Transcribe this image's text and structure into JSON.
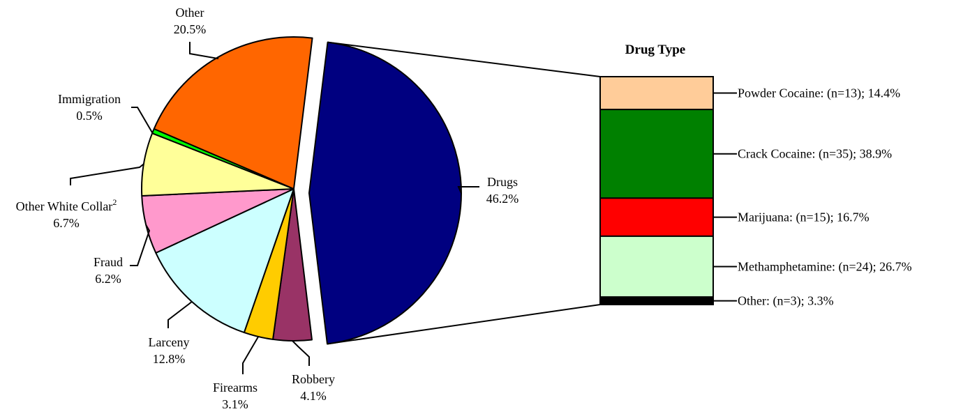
{
  "chart_data": [
    {
      "type": "pie",
      "slices": [
        {
          "label": "Drugs",
          "pct_label": "46.2%",
          "value": 46.2,
          "color": "#000080",
          "exploded": true
        },
        {
          "label": "Robbery",
          "pct_label": "4.1%",
          "value": 4.1,
          "color": "#993366"
        },
        {
          "label": "Firearms",
          "pct_label": "3.1%",
          "value": 3.1,
          "color": "#FFCC00"
        },
        {
          "label": "Larceny",
          "pct_label": "12.8%",
          "value": 12.8,
          "color": "#CCFFFF"
        },
        {
          "label": "Fraud",
          "pct_label": "6.2%",
          "value": 6.2,
          "color": "#FF99CC"
        },
        {
          "label": "Other White Collar",
          "superscript": "2",
          "pct_label": "6.7%",
          "value": 6.7,
          "color": "#FFFF99"
        },
        {
          "label": "Immigration",
          "pct_label": "0.5%",
          "value": 0.5,
          "color": "#00FF00"
        },
        {
          "label": "Other",
          "pct_label": "20.5%",
          "value": 20.5,
          "color": "#FF6600"
        }
      ]
    },
    {
      "type": "bar",
      "stacked": true,
      "title": "Drug Type",
      "segments": [
        {
          "label": "Powder Cocaine: (n=13); 14.4%",
          "n": 13,
          "value": 14.4,
          "color": "#FFCC99"
        },
        {
          "label": "Crack Cocaine: (n=35); 38.9%",
          "n": 35,
          "value": 38.9,
          "color": "#008000"
        },
        {
          "label": "Marijuana: (n=15); 16.7%",
          "n": 15,
          "value": 16.7,
          "color": "#FF0000"
        },
        {
          "label": "Methamphetamine: (n=24); 26.7%",
          "n": 24,
          "value": 26.7,
          "color": "#CCFFCC"
        },
        {
          "label": "Other: (n=3); 3.3%",
          "n": 3,
          "value": 3.3,
          "color": "#000000"
        }
      ]
    }
  ]
}
